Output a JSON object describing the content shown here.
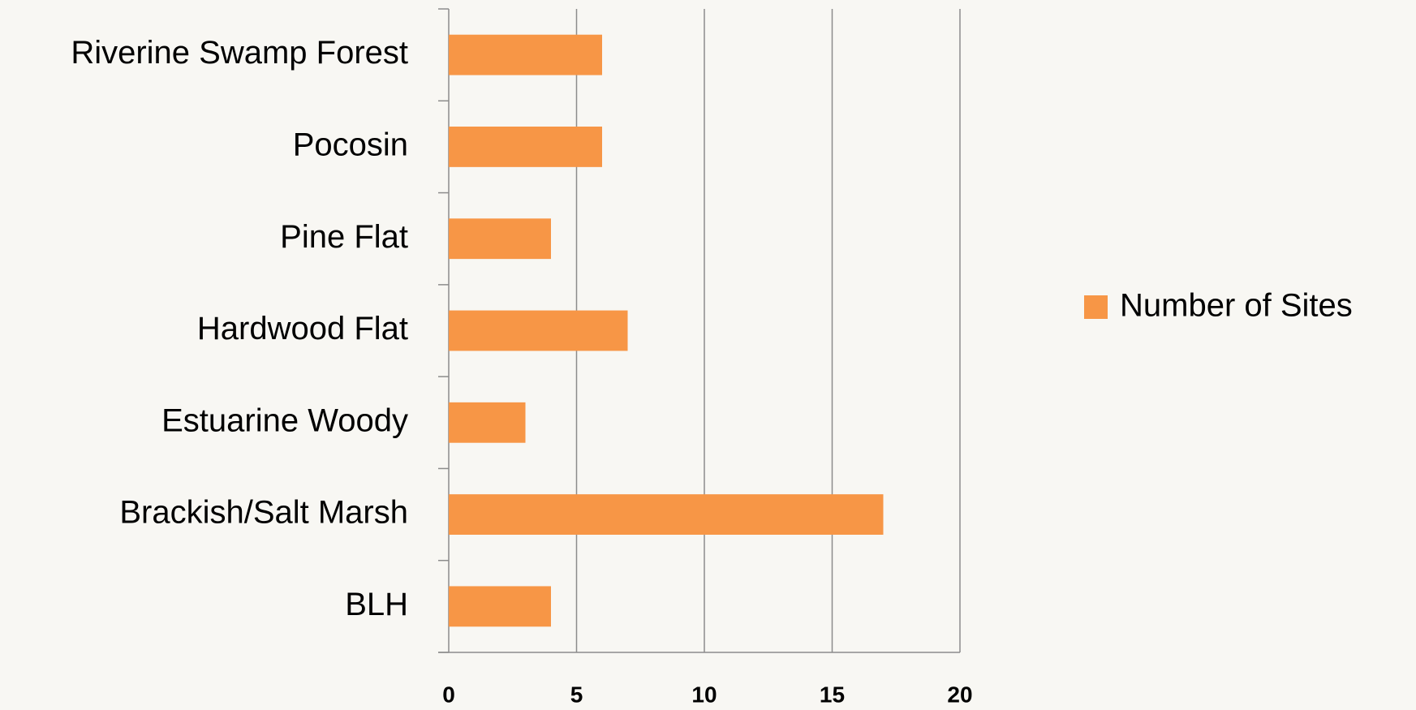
{
  "chart_data": {
    "type": "hbar",
    "categories": [
      "Riverine Swamp Forest",
      "Pocosin",
      "Pine Flat",
      "Hardwood Flat",
      "Estuarine Woody",
      "Brackish/Salt Marsh",
      "BLH"
    ],
    "series": [
      {
        "name": "Number of Sites",
        "color": "#f79646",
        "values": [
          6,
          6,
          4,
          7,
          3,
          17,
          4
        ]
      }
    ],
    "xlim": [
      0,
      20
    ],
    "xticks": [
      0,
      5,
      10,
      15,
      20
    ],
    "grid": true,
    "legend": "right"
  }
}
